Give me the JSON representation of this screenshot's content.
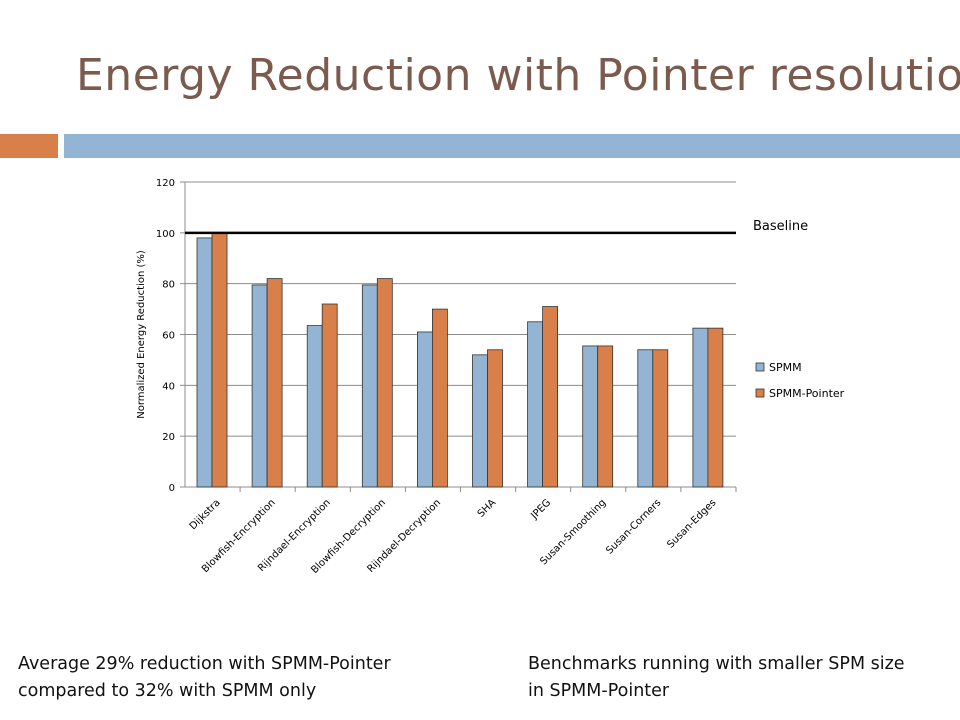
{
  "slide": {
    "title": "Energy Reduction with Pointer resolution",
    "accent_colors": {
      "orange": "#d9804a",
      "blue": "#94b4d3"
    },
    "caption_left": [
      "Average 29% reduction with SPMM-Pointer",
      "compared to 32% with SPMM only"
    ],
    "caption_right": [
      "Benchmarks running with smaller SPM size",
      "in SPMM-Pointer"
    ]
  },
  "chart_data": {
    "type": "bar",
    "title": "",
    "xlabel": "",
    "ylabel": "Normalized Energy Reduction (%)",
    "ylim": [
      0,
      120
    ],
    "yticks": [
      0,
      20,
      40,
      60,
      80,
      100,
      120
    ],
    "grid": true,
    "legend": "right",
    "categories": [
      "Dijkstra",
      "Blowfish-Encryption",
      "Rijndael-Encryption",
      "Blowfish-Decryption",
      "Rijndael-Decryption",
      "SHA",
      "JPEG",
      "Susan-Smoothing",
      "Susan-Corners",
      "Susan-Edges"
    ],
    "series": [
      {
        "name": "SPMM",
        "color": "#94b4d3",
        "values": [
          98,
          79.5,
          63.5,
          79.5,
          61,
          52,
          65,
          55.5,
          54,
          62.5
        ]
      },
      {
        "name": "SPMM-Pointer",
        "color": "#d9804a",
        "values": [
          100,
          82,
          72,
          82,
          70,
          54,
          71,
          55.5,
          54,
          62.5
        ]
      }
    ],
    "annotations": [
      {
        "text": "Baseline",
        "y": 100
      }
    ]
  }
}
